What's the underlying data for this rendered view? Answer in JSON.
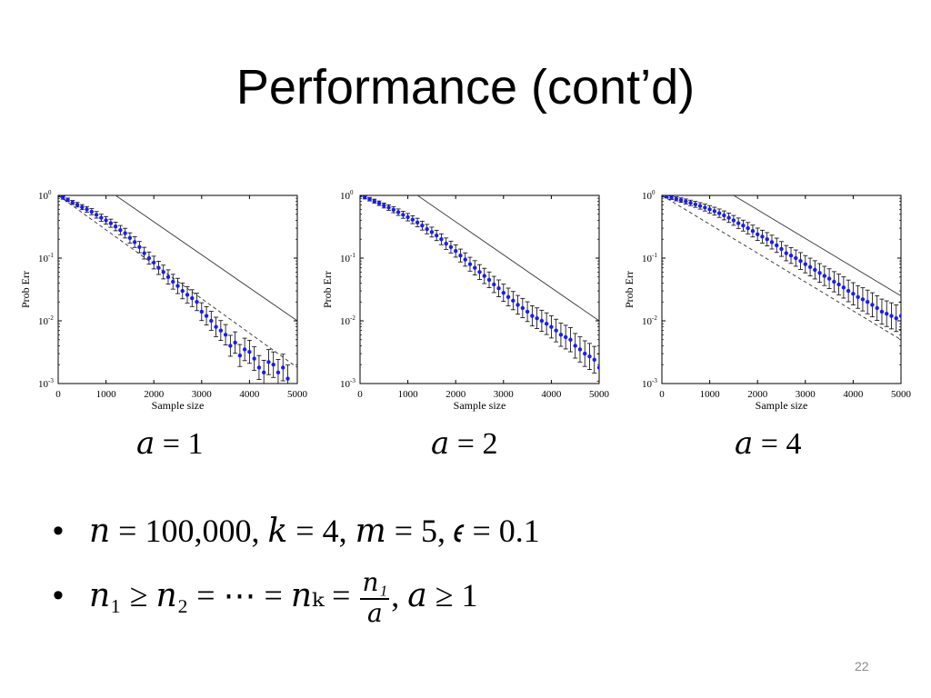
{
  "slide": {
    "title": "Performance (cont’d)",
    "page_number": "22",
    "captions": [
      "𝑎 = 1",
      "𝑎 = 2",
      "𝑎 = 4"
    ],
    "bullets": {
      "b1": "𝑛 = 100,000, 𝑘 = 4, 𝑚 = 5, 𝜖 = 0.1",
      "b2_lhs": "𝑛₁ ≥ 𝑛₂ = ⋯ = 𝑛ₖ =",
      "b2_num": "𝑛₁",
      "b2_den": "𝑎",
      "b2_rhs": ", 𝑎 ≥ 1"
    }
  },
  "colors": {
    "data": "#1a1aff",
    "errorbar": "#000000",
    "axis": "#000000",
    "reference_lines": "#444444"
  },
  "chart_data": [
    {
      "type": "scatter",
      "xlabel": "Sample size",
      "ylabel": "Prob Err",
      "xlim": [
        0,
        5000
      ],
      "ylim": [
        0.001,
        1
      ],
      "yscale": "log",
      "xticks": [
        "0",
        "1000",
        "2000",
        "3000",
        "4000",
        "5000"
      ],
      "yticks": [
        "10^-3",
        "10^-2",
        "10^-1",
        "10^0"
      ],
      "reference_lines": {
        "solid": [
          [
            1200,
            1
          ],
          [
            5000,
            0.01
          ]
        ],
        "dashed": [
          [
            0,
            1
          ],
          [
            5000,
            0.0018
          ]
        ]
      },
      "points": [
        [
          0,
          1.0
        ],
        [
          100,
          0.92
        ],
        [
          200,
          0.85
        ],
        [
          300,
          0.77
        ],
        [
          400,
          0.71
        ],
        [
          500,
          0.65
        ],
        [
          600,
          0.6
        ],
        [
          700,
          0.55
        ],
        [
          800,
          0.49
        ],
        [
          900,
          0.44
        ],
        [
          1000,
          0.4
        ],
        [
          1100,
          0.36
        ],
        [
          1200,
          0.32
        ],
        [
          1300,
          0.28
        ],
        [
          1400,
          0.25
        ],
        [
          1500,
          0.21
        ],
        [
          1600,
          0.18
        ],
        [
          1700,
          0.15
        ],
        [
          1800,
          0.12
        ],
        [
          1900,
          0.1
        ],
        [
          2000,
          0.085
        ],
        [
          2100,
          0.07
        ],
        [
          2200,
          0.06
        ],
        [
          2300,
          0.05
        ],
        [
          2400,
          0.042
        ],
        [
          2500,
          0.036
        ],
        [
          2600,
          0.03
        ],
        [
          2700,
          0.026
        ],
        [
          2800,
          0.023
        ],
        [
          2900,
          0.02
        ],
        [
          3000,
          0.014
        ],
        [
          3100,
          0.012
        ],
        [
          3200,
          0.01
        ],
        [
          3300,
          0.008
        ],
        [
          3400,
          0.007
        ],
        [
          3500,
          0.006
        ],
        [
          3600,
          0.004
        ],
        [
          3700,
          0.0045
        ],
        [
          3800,
          0.0028
        ],
        [
          3900,
          0.0035
        ],
        [
          4000,
          0.0032
        ],
        [
          4100,
          0.0025
        ],
        [
          4200,
          0.0018
        ],
        [
          4300,
          0.0015
        ],
        [
          4400,
          0.0022
        ],
        [
          4500,
          0.002
        ],
        [
          4600,
          0.0015
        ],
        [
          4700,
          0.0018
        ],
        [
          4800,
          0.0012
        ]
      ]
    },
    {
      "type": "scatter",
      "xlabel": "Sample size",
      "ylabel": "Prob Err",
      "xlim": [
        0,
        5000
      ],
      "ylim": [
        0.001,
        1
      ],
      "yscale": "log",
      "xticks": [
        "0",
        "1000",
        "2000",
        "3000",
        "4000",
        "5000"
      ],
      "yticks": [
        "10^-3",
        "10^-2",
        "10^-1",
        "10^0"
      ],
      "reference_lines": {
        "solid": [
          [
            1200,
            1
          ],
          [
            5000,
            0.01
          ]
        ]
      },
      "points": [
        [
          0,
          1.0
        ],
        [
          100,
          0.93
        ],
        [
          200,
          0.87
        ],
        [
          300,
          0.81
        ],
        [
          400,
          0.75
        ],
        [
          500,
          0.69
        ],
        [
          600,
          0.64
        ],
        [
          700,
          0.59
        ],
        [
          800,
          0.54
        ],
        [
          900,
          0.49
        ],
        [
          1000,
          0.45
        ],
        [
          1100,
          0.41
        ],
        [
          1200,
          0.37
        ],
        [
          1300,
          0.33
        ],
        [
          1400,
          0.29
        ],
        [
          1500,
          0.26
        ],
        [
          1600,
          0.23
        ],
        [
          1700,
          0.2
        ],
        [
          1800,
          0.17
        ],
        [
          1900,
          0.15
        ],
        [
          2000,
          0.13
        ],
        [
          2100,
          0.11
        ],
        [
          2200,
          0.095
        ],
        [
          2300,
          0.08
        ],
        [
          2400,
          0.07
        ],
        [
          2500,
          0.06
        ],
        [
          2600,
          0.052
        ],
        [
          2700,
          0.045
        ],
        [
          2800,
          0.038
        ],
        [
          2900,
          0.033
        ],
        [
          3000,
          0.028
        ],
        [
          3100,
          0.024
        ],
        [
          3200,
          0.021
        ],
        [
          3300,
          0.018
        ],
        [
          3400,
          0.016
        ],
        [
          3500,
          0.014
        ],
        [
          3600,
          0.012
        ],
        [
          3700,
          0.011
        ],
        [
          3800,
          0.01
        ],
        [
          3900,
          0.009
        ],
        [
          4000,
          0.008
        ],
        [
          4100,
          0.007
        ],
        [
          4200,
          0.006
        ],
        [
          4300,
          0.0055
        ],
        [
          4400,
          0.005
        ],
        [
          4500,
          0.004
        ],
        [
          4600,
          0.0035
        ],
        [
          4700,
          0.003
        ],
        [
          4800,
          0.0027
        ],
        [
          4900,
          0.0024
        ],
        [
          5000,
          0.0018
        ]
      ]
    },
    {
      "type": "scatter",
      "xlabel": "Sample size",
      "ylabel": "Prob Err",
      "xlim": [
        0,
        5000
      ],
      "ylim": [
        0.001,
        1
      ],
      "yscale": "log",
      "xticks": [
        "0",
        "1000",
        "2000",
        "3000",
        "4000",
        "5000"
      ],
      "yticks": [
        "10^-3",
        "10^-2",
        "10^-1",
        "10^0"
      ],
      "reference_lines": {
        "solid": [
          [
            1500,
            1
          ],
          [
            5000,
            0.025
          ]
        ],
        "dashed": [
          [
            0,
            1
          ],
          [
            5000,
            0.005
          ]
        ]
      },
      "points": [
        [
          0,
          1.0
        ],
        [
          100,
          0.96
        ],
        [
          200,
          0.92
        ],
        [
          300,
          0.88
        ],
        [
          400,
          0.84
        ],
        [
          500,
          0.8
        ],
        [
          600,
          0.76
        ],
        [
          700,
          0.72
        ],
        [
          800,
          0.68
        ],
        [
          900,
          0.64
        ],
        [
          1000,
          0.6
        ],
        [
          1100,
          0.56
        ],
        [
          1200,
          0.52
        ],
        [
          1300,
          0.48
        ],
        [
          1400,
          0.44
        ],
        [
          1500,
          0.4
        ],
        [
          1600,
          0.36
        ],
        [
          1700,
          0.33
        ],
        [
          1800,
          0.3
        ],
        [
          1900,
          0.27
        ],
        [
          2000,
          0.24
        ],
        [
          2100,
          0.22
        ],
        [
          2200,
          0.2
        ],
        [
          2300,
          0.18
        ],
        [
          2400,
          0.16
        ],
        [
          2500,
          0.14
        ],
        [
          2600,
          0.12
        ],
        [
          2700,
          0.11
        ],
        [
          2800,
          0.1
        ],
        [
          2900,
          0.09
        ],
        [
          3000,
          0.08
        ],
        [
          3100,
          0.072
        ],
        [
          3200,
          0.065
        ],
        [
          3300,
          0.058
        ],
        [
          3400,
          0.052
        ],
        [
          3500,
          0.047
        ],
        [
          3600,
          0.042
        ],
        [
          3700,
          0.038
        ],
        [
          3800,
          0.034
        ],
        [
          3900,
          0.03
        ],
        [
          4000,
          0.027
        ],
        [
          4100,
          0.024
        ],
        [
          4200,
          0.022
        ],
        [
          4300,
          0.02
        ],
        [
          4400,
          0.018
        ],
        [
          4500,
          0.016
        ],
        [
          4600,
          0.014
        ],
        [
          4700,
          0.013
        ],
        [
          4800,
          0.012
        ],
        [
          4900,
          0.011
        ],
        [
          5000,
          0.012
        ]
      ]
    }
  ]
}
